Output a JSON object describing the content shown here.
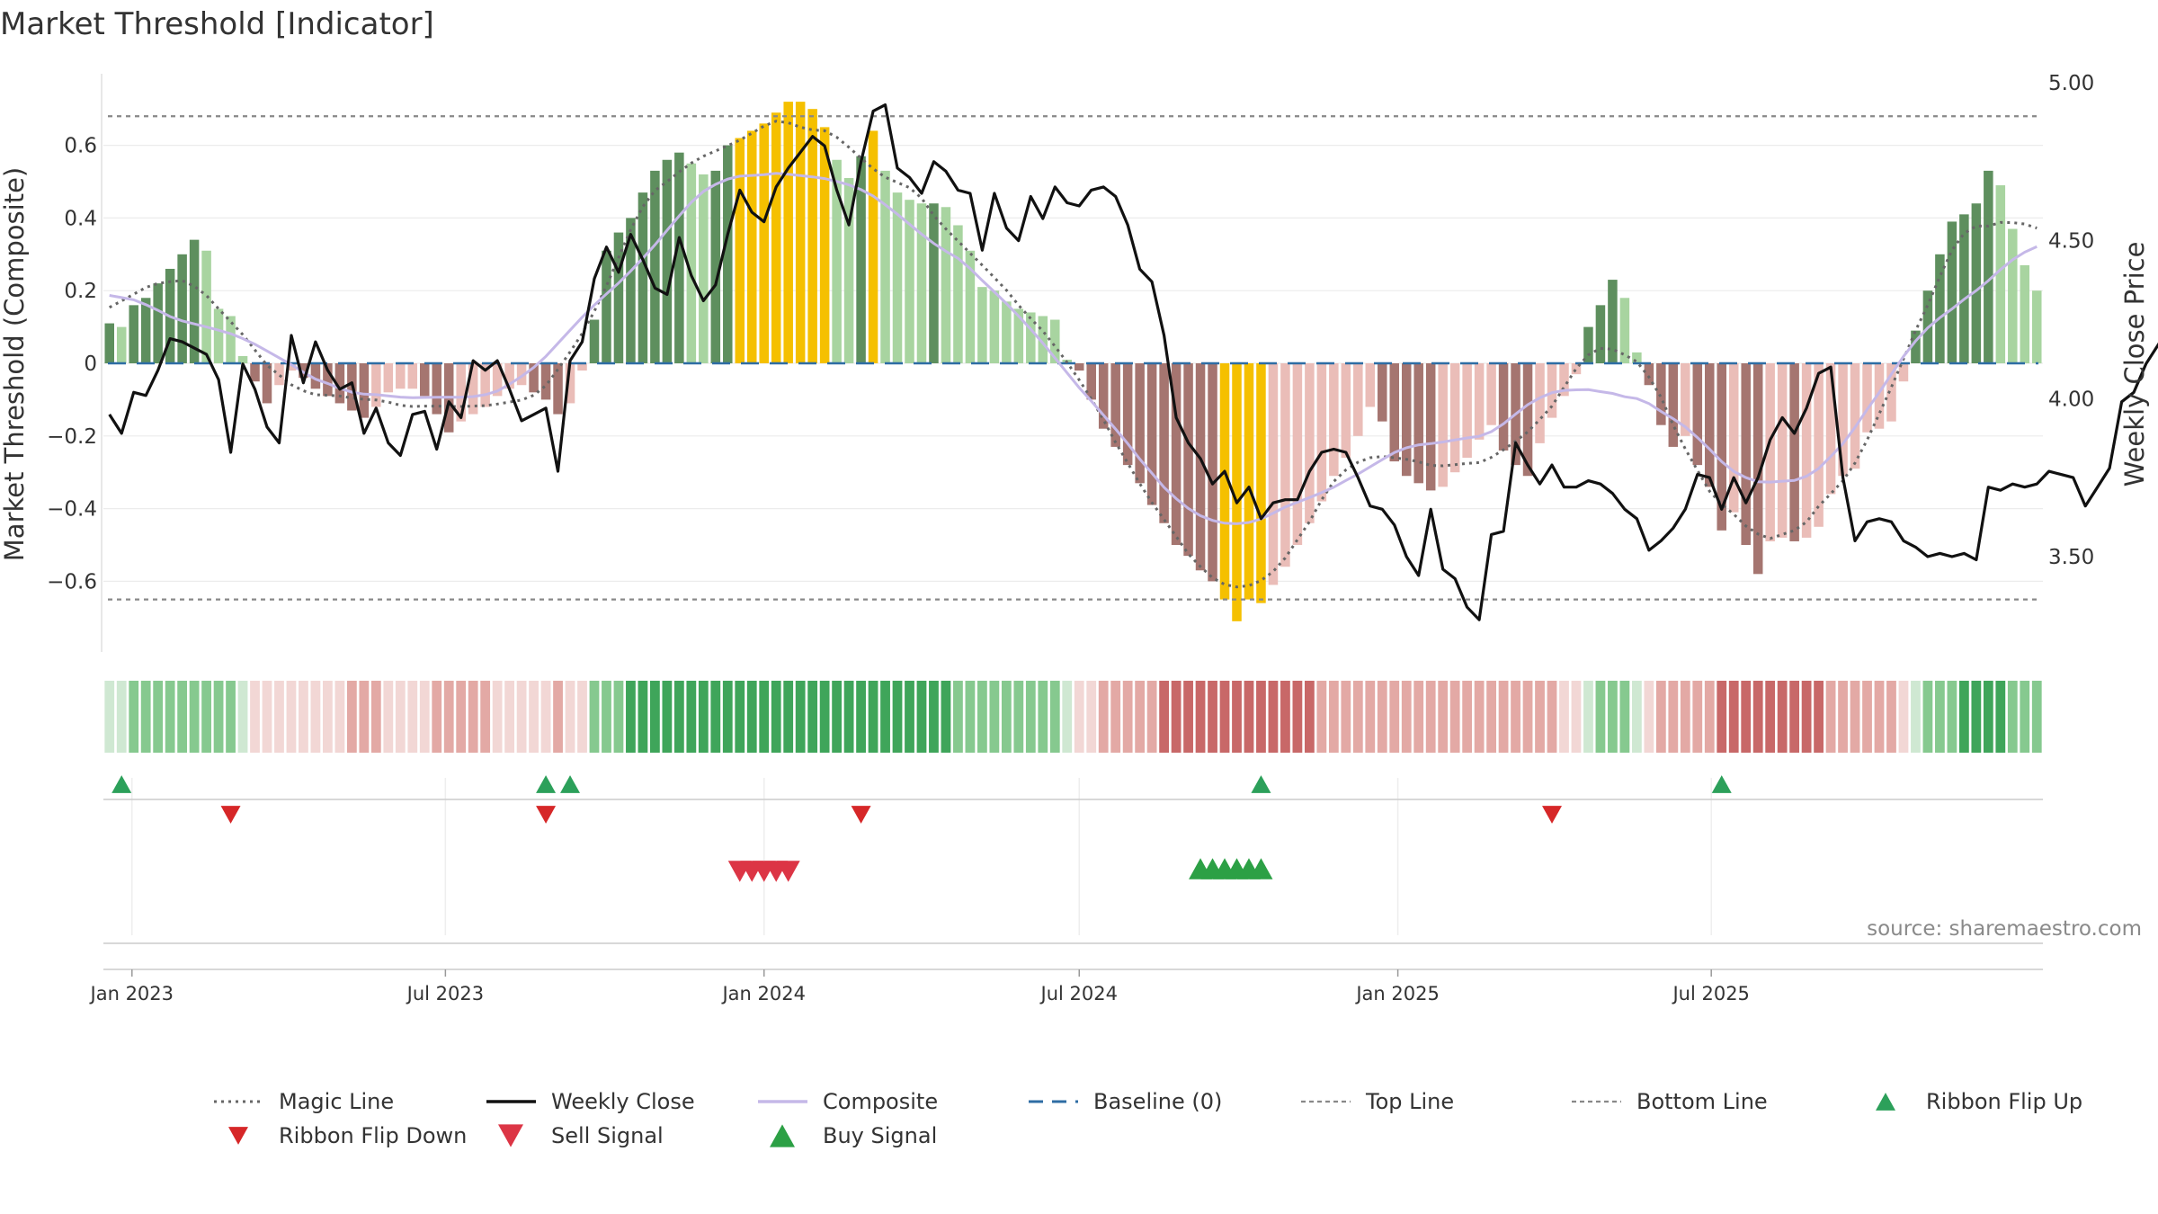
{
  "title": "Market Threshold [Indicator]",
  "source": "source: sharemaestro.com",
  "chart_data": {
    "type": "bar",
    "title": "Market Threshold [Indicator]",
    "ylabel": "Market Threshold (Composite)",
    "y2label": "Weekly Close Price",
    "ylim": [
      -0.8,
      0.8
    ],
    "y2lim": [
      3.25,
      5.0
    ],
    "yticks": [
      "0.6",
      "0.4",
      "0.2",
      "0",
      "−0.2",
      "−0.4",
      "−0.6"
    ],
    "yticks_values": [
      0.6,
      0.4,
      0.2,
      0,
      -0.2,
      -0.4,
      -0.6
    ],
    "y2ticks": [
      "5.00",
      "4.50",
      "4.00",
      "3.50"
    ],
    "y2ticks_values": [
      5.0,
      4.5,
      4.0,
      3.5
    ],
    "x_start": "2022-12-19",
    "x_interval": "weekly",
    "xticks": [
      "Jan 2023",
      "Jul 2023",
      "Jan 2024",
      "Jul 2024",
      "Jan 2025",
      "Jul 2025"
    ],
    "top_line": 0.68,
    "bottom_line": -0.65,
    "baseline": 0,
    "composite_bars": [
      0.11,
      0.1,
      0.16,
      0.18,
      0.22,
      0.26,
      0.3,
      0.34,
      0.31,
      0.15,
      0.13,
      0.02,
      -0.05,
      -0.11,
      -0.06,
      -0.02,
      -0.04,
      -0.07,
      -0.09,
      -0.11,
      -0.13,
      -0.15,
      -0.12,
      -0.08,
      -0.07,
      -0.07,
      -0.09,
      -0.14,
      -0.19,
      -0.16,
      -0.14,
      -0.12,
      -0.09,
      -0.07,
      -0.06,
      -0.08,
      -0.1,
      -0.14,
      -0.11,
      -0.02,
      0.12,
      0.31,
      0.36,
      0.4,
      0.47,
      0.53,
      0.56,
      0.58,
      0.55,
      0.52,
      0.53,
      0.6,
      0.62,
      0.64,
      0.66,
      0.69,
      0.72,
      0.72,
      0.7,
      0.65,
      0.56,
      0.51,
      0.57,
      0.64,
      0.53,
      0.47,
      0.45,
      0.44,
      0.44,
      0.43,
      0.38,
      0.31,
      0.21,
      0.2,
      0.17,
      0.15,
      0.14,
      0.13,
      0.12,
      0.01,
      -0.02,
      -0.1,
      -0.18,
      -0.23,
      -0.28,
      -0.33,
      -0.39,
      -0.44,
      -0.5,
      -0.53,
      -0.57,
      -0.6,
      -0.65,
      -0.71,
      -0.65,
      -0.66,
      -0.61,
      -0.56,
      -0.5,
      -0.44,
      -0.38,
      -0.31,
      -0.26,
      -0.2,
      -0.12,
      -0.16,
      -0.27,
      -0.31,
      -0.33,
      -0.35,
      -0.34,
      -0.3,
      -0.26,
      -0.21,
      -0.17,
      -0.24,
      -0.28,
      -0.31,
      -0.22,
      -0.15,
      -0.09,
      -0.03,
      0.1,
      0.16,
      0.23,
      0.18,
      0.03,
      -0.06,
      -0.17,
      -0.23,
      -0.2,
      -0.28,
      -0.34,
      -0.46,
      -0.41,
      -0.5,
      -0.58,
      -0.49,
      -0.48,
      -0.49,
      -0.48,
      -0.45,
      -0.36,
      -0.31,
      -0.29,
      -0.19,
      -0.18,
      -0.16,
      -0.05,
      0.09,
      0.2,
      0.3,
      0.39,
      0.41,
      0.44,
      0.53,
      0.49,
      0.37,
      0.27,
      0.2
    ],
    "weekly_close": [
      3.95,
      3.89,
      4.02,
      4.01,
      4.09,
      4.19,
      4.18,
      4.16,
      4.14,
      4.06,
      3.83,
      4.11,
      4.03,
      3.91,
      3.86,
      4.2,
      4.05,
      4.18,
      4.09,
      4.03,
      4.05,
      3.89,
      3.97,
      3.86,
      3.82,
      3.95,
      3.96,
      3.84,
      3.99,
      3.94,
      4.12,
      4.09,
      4.12,
      4.03,
      3.93,
      3.95,
      3.97,
      3.77,
      4.12,
      4.18,
      4.38,
      4.48,
      4.4,
      4.52,
      4.44,
      4.35,
      4.33,
      4.51,
      4.39,
      4.31,
      4.36,
      4.52,
      4.66,
      4.59,
      4.56,
      4.67,
      4.73,
      4.78,
      4.83,
      4.8,
      4.66,
      4.55,
      4.75,
      4.91,
      4.93,
      4.73,
      4.7,
      4.65,
      4.75,
      4.72,
      4.66,
      4.65,
      4.47,
      4.65,
      4.54,
      4.5,
      4.64,
      4.57,
      4.67,
      4.62,
      4.61,
      4.66,
      4.67,
      4.64,
      4.55,
      4.41,
      4.37,
      4.2,
      3.94,
      3.86,
      3.81,
      3.73,
      3.77,
      3.67,
      3.72,
      3.62,
      3.67,
      3.68,
      3.68,
      3.77,
      3.83,
      3.84,
      3.83,
      3.75,
      3.66,
      3.65,
      3.6,
      3.5,
      3.44,
      3.65,
      3.46,
      3.43,
      3.34,
      3.3,
      3.57,
      3.58,
      3.86,
      3.79,
      3.73,
      3.79,
      3.72,
      3.72,
      3.74,
      3.73,
      3.7,
      3.65,
      3.62,
      3.52,
      3.55,
      3.59,
      3.65,
      3.76,
      3.75,
      3.65,
      3.75,
      3.67,
      3.75,
      3.87,
      3.94,
      3.89,
      3.97,
      4.08,
      4.1,
      3.75,
      3.55,
      3.61,
      3.62,
      3.61,
      3.55,
      3.53,
      3.5,
      3.51,
      3.5,
      3.51,
      3.49,
      3.72,
      3.71,
      3.73,
      3.72,
      3.73,
      3.77,
      3.76,
      3.75,
      3.66,
      3.72,
      3.78,
      3.99,
      4.02,
      4.11,
      4.17,
      4.23,
      4.33,
      4.31,
      4.25,
      4.22,
      4.2,
      4.23,
      4.2
    ],
    "bar_colors": {
      "strong_up": "#5e8f5e",
      "weak_up": "#a8d4a0",
      "strong_down": "#a57570",
      "weak_down": "#eabdb8",
      "extreme": "#f5c000"
    },
    "ribbon_colors": {
      "up_light": "#cfe8d2",
      "up_mid": "#86c98f",
      "up_strong": "#3fa55a",
      "down_light": "#f2d7d5",
      "down_mid": "#e3a9a5",
      "down_strong": "#c86868"
    },
    "ribbon_flip_up_weeks": [
      1,
      36,
      38,
      95,
      133
    ],
    "ribbon_flip_down_weeks": [
      10,
      36,
      62,
      119
    ],
    "sell_signal_weeks": [
      52,
      53,
      54,
      55,
      56
    ],
    "buy_signal_weeks": [
      90,
      91,
      92,
      93,
      94,
      95
    ],
    "series": [
      {
        "name": "Magic Line",
        "color": "#666666",
        "style": "dotted"
      },
      {
        "name": "Weekly Close",
        "color": "#111111",
        "style": "solid"
      },
      {
        "name": "Composite",
        "color": "#c5b8e8",
        "style": "solid"
      },
      {
        "name": "Baseline (0)",
        "color": "#2e6da4",
        "style": "dashed"
      },
      {
        "name": "Top Line",
        "color": "#888888",
        "style": "dashed"
      },
      {
        "name": "Bottom Line",
        "color": "#888888",
        "style": "dashed"
      },
      {
        "name": "Ribbon Flip Up",
        "color": "#2ca05a",
        "style": "marker-up"
      },
      {
        "name": "Ribbon Flip Down",
        "color": "#d62728",
        "style": "marker-down"
      },
      {
        "name": "Sell Signal",
        "color": "#dc3545",
        "style": "marker-down-large"
      },
      {
        "name": "Buy Signal",
        "color": "#2ca045",
        "style": "marker-up-large"
      }
    ]
  }
}
